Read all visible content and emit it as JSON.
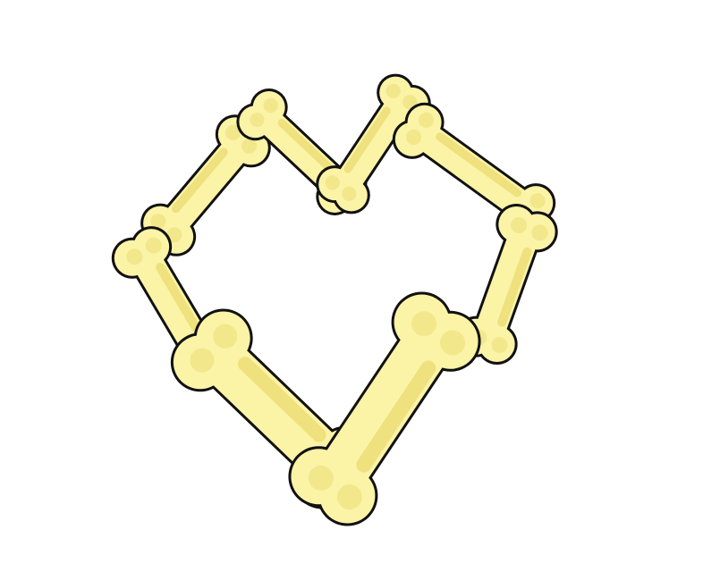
{
  "artwork": {
    "subject": "heart-of-bones",
    "bone_fill": "#FBF3A6",
    "bone_shade": "#EDE07A",
    "outline": "#111111",
    "background": "#FFFFFF"
  },
  "bones": [
    {
      "name": "bone-top-left-upper"
    },
    {
      "name": "bone-top-left-inner"
    },
    {
      "name": "bone-top-right-inner"
    },
    {
      "name": "bone-top-right-upper"
    },
    {
      "name": "bone-right-side"
    },
    {
      "name": "bone-left-side"
    },
    {
      "name": "bone-bottom-left-large"
    },
    {
      "name": "bone-bottom-right-large"
    }
  ]
}
